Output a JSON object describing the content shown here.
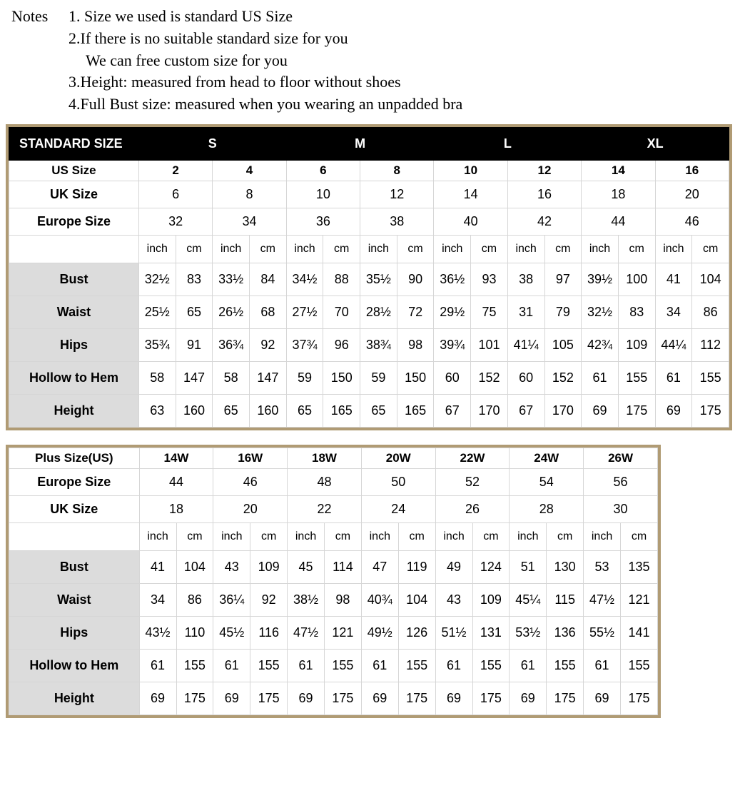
{
  "notes": {
    "label": "Notes",
    "lines": [
      "1. Size we used is standard US Size",
      "2.If there is no suitable standard size for you",
      "We can free custom size for you",
      "3.Height: measured from head to floor without shoes",
      "4.Full Bust size: measured when you wearing an unpadded bra"
    ]
  },
  "standard": {
    "header_label": "STANDARD SIZE",
    "groups": [
      "S",
      "M",
      "L",
      "XL"
    ],
    "us_label": "US Size",
    "us": [
      "2",
      "4",
      "6",
      "8",
      "10",
      "12",
      "14",
      "16"
    ],
    "uk_label": "UK Size",
    "uk": [
      "6",
      "8",
      "10",
      "12",
      "14",
      "16",
      "18",
      "20"
    ],
    "eu_label": "Europe Size",
    "eu": [
      "32",
      "34",
      "36",
      "38",
      "40",
      "42",
      "44",
      "46"
    ],
    "unit_inch": "inch",
    "unit_cm": "cm",
    "rows": [
      {
        "label": "Bust",
        "vals": [
          "32½",
          "83",
          "33½",
          "84",
          "34½",
          "88",
          "35½",
          "90",
          "36½",
          "93",
          "38",
          "97",
          "39½",
          "100",
          "41",
          "104"
        ]
      },
      {
        "label": "Waist",
        "vals": [
          "25½",
          "65",
          "26½",
          "68",
          "27½",
          "70",
          "28½",
          "72",
          "29½",
          "75",
          "31",
          "79",
          "32½",
          "83",
          "34",
          "86"
        ]
      },
      {
        "label": "Hips",
        "vals": [
          "35¾",
          "91",
          "36¾",
          "92",
          "37¾",
          "96",
          "38¾",
          "98",
          "39¾",
          "101",
          "41¼",
          "105",
          "42¾",
          "109",
          "44¼",
          "112"
        ]
      },
      {
        "label": "Hollow to Hem",
        "vals": [
          "58",
          "147",
          "58",
          "147",
          "59",
          "150",
          "59",
          "150",
          "60",
          "152",
          "60",
          "152",
          "61",
          "155",
          "61",
          "155"
        ]
      },
      {
        "label": "Height",
        "vals": [
          "63",
          "160",
          "65",
          "160",
          "65",
          "165",
          "65",
          "165",
          "67",
          "170",
          "67",
          "170",
          "69",
          "175",
          "69",
          "175"
        ]
      }
    ]
  },
  "plus": {
    "us_label": "Plus Size(US)",
    "us": [
      "14W",
      "16W",
      "18W",
      "20W",
      "22W",
      "24W",
      "26W"
    ],
    "eu_label": "Europe Size",
    "eu": [
      "44",
      "46",
      "48",
      "50",
      "52",
      "54",
      "56"
    ],
    "uk_label": "UK Size",
    "uk": [
      "18",
      "20",
      "22",
      "24",
      "26",
      "28",
      "30"
    ],
    "unit_inch": "inch",
    "unit_cm": "cm",
    "rows": [
      {
        "label": "Bust",
        "vals": [
          "41",
          "104",
          "43",
          "109",
          "45",
          "114",
          "47",
          "119",
          "49",
          "124",
          "51",
          "130",
          "53",
          "135"
        ]
      },
      {
        "label": "Waist",
        "vals": [
          "34",
          "86",
          "36¼",
          "92",
          "38½",
          "98",
          "40¾",
          "104",
          "43",
          "109",
          "45¼",
          "115",
          "47½",
          "121"
        ]
      },
      {
        "label": "Hips",
        "vals": [
          "43½",
          "110",
          "45½",
          "116",
          "47½",
          "121",
          "49½",
          "126",
          "51½",
          "131",
          "53½",
          "136",
          "55½",
          "141"
        ]
      },
      {
        "label": "Hollow to Hem",
        "vals": [
          "61",
          "155",
          "61",
          "155",
          "61",
          "155",
          "61",
          "155",
          "61",
          "155",
          "61",
          "155",
          "61",
          "155"
        ]
      },
      {
        "label": "Height",
        "vals": [
          "69",
          "175",
          "69",
          "175",
          "69",
          "175",
          "69",
          "175",
          "69",
          "175",
          "69",
          "175",
          "69",
          "175"
        ]
      }
    ]
  },
  "colors": {
    "frame": "#b09b74",
    "header_bg": "#000000",
    "header_fg": "#ffffff",
    "meas_lbl_bg": "#dcdcdc",
    "border": "#d6d6d6",
    "background": "#ffffff"
  }
}
